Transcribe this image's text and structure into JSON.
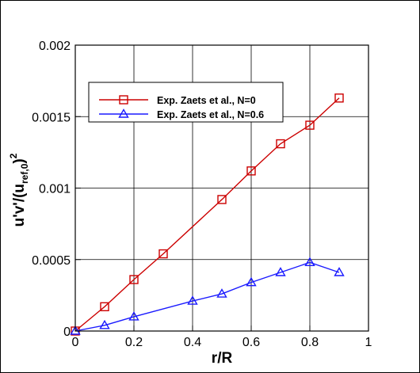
{
  "chart_data": {
    "type": "line",
    "xlabel": "r/R",
    "ylabel": {
      "main": "u'v'/(u",
      "subscript": "ref,0",
      "close": ")",
      "superscript": "2"
    },
    "xlim": [
      0,
      1
    ],
    "ylim": [
      0,
      0.002
    ],
    "x_ticks": [
      "0",
      "0.2",
      "0.4",
      "0.6",
      "0.8",
      "1"
    ],
    "y_ticks": [
      "0",
      "0.0005",
      "0.001",
      "0.0015",
      "0.002"
    ],
    "grid": true,
    "legend_position": "upper-left",
    "series": [
      {
        "name": "Exp. Zaets et al., N=0",
        "color": "#cc0000",
        "marker": "square",
        "x": [
          0,
          0.1,
          0.2,
          0.3,
          0.5,
          0.6,
          0.7,
          0.8,
          0.9
        ],
        "y": [
          0,
          0.00017,
          0.00036,
          0.00054,
          0.00092,
          0.00112,
          0.00131,
          0.00144,
          0.00163
        ]
      },
      {
        "name": "Exp. Zaets et al., N=0.6",
        "color": "#1a1aff",
        "marker": "triangle",
        "x": [
          0,
          0.1,
          0.2,
          0.4,
          0.5,
          0.6,
          0.7,
          0.8,
          0.9
        ],
        "y": [
          0,
          4e-05,
          0.0001,
          0.00021,
          0.00026,
          0.00034,
          0.00041,
          0.00048,
          0.00041
        ]
      }
    ]
  }
}
